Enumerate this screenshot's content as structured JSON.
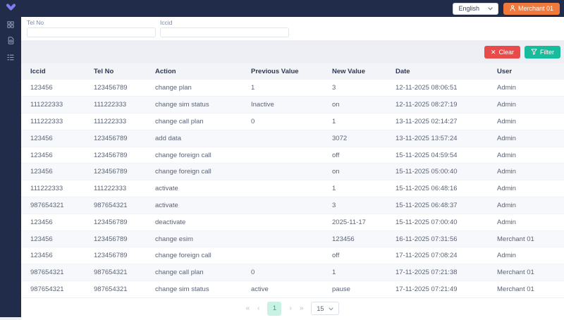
{
  "topbar": {
    "language": "English",
    "merchant_label": "Merchant 01"
  },
  "sidebar": {
    "logo_icon": "chevron-down-logo",
    "icons": [
      "dashboard-icon",
      "sim-card-icon",
      "list-icon"
    ]
  },
  "filters": {
    "tel_no_label": "Tel No",
    "tel_no_value": "",
    "iccid_label": "Iccid",
    "iccid_value": "",
    "clear_label": "Clear",
    "filter_label": "Filter"
  },
  "table": {
    "columns": [
      "Iccid",
      "Tel No",
      "Action",
      "Previous Value",
      "New Value",
      "Date",
      "User"
    ],
    "rows": [
      [
        "123456",
        "123456789",
        "change plan",
        "1",
        "3",
        "12-11-2025 08:06:51",
        "Admin"
      ],
      [
        "111222333",
        "111222333",
        "change sim status",
        "Inactive",
        "on",
        "12-11-2025 08:27:19",
        "Admin"
      ],
      [
        "111222333",
        "111222333",
        "change call plan",
        "0",
        "1",
        "13-11-2025 02:14:27",
        "Admin"
      ],
      [
        "123456",
        "123456789",
        "add data",
        "",
        "3072",
        "13-11-2025 13:57:24",
        "Admin"
      ],
      [
        "123456",
        "123456789",
        "change foreign call",
        "",
        "off",
        "15-11-2025 04:59:54",
        "Admin"
      ],
      [
        "123456",
        "123456789",
        "change foreign call",
        "",
        "on",
        "15-11-2025 05:00:40",
        "Admin"
      ],
      [
        "111222333",
        "111222333",
        "activate",
        "",
        "1",
        "15-11-2025 06:48:16",
        "Admin"
      ],
      [
        "987654321",
        "987654321",
        "activate",
        "",
        "3",
        "15-11-2025 06:48:37",
        "Admin"
      ],
      [
        "123456",
        "123456789",
        "deactivate",
        "",
        "2025-11-17",
        "15-11-2025 07:00:40",
        "Admin"
      ],
      [
        "123456",
        "123456789",
        "change esim",
        "",
        "123456",
        "16-11-2025 07:31:56",
        "Merchant 01"
      ],
      [
        "123456",
        "123456789",
        "change foreign call",
        "",
        "off",
        "17-11-2025 07:08:24",
        "Admin"
      ],
      [
        "987654321",
        "987654321",
        "change call plan",
        "0",
        "1",
        "17-11-2025 07:21:38",
        "Merchant 01"
      ],
      [
        "987654321",
        "987654321",
        "change sim status",
        "active",
        "pause",
        "17-11-2025 07:21:49",
        "Merchant 01"
      ]
    ]
  },
  "pagination": {
    "first_label": "«",
    "prev_label": "‹",
    "current_page": "1",
    "next_label": "›",
    "last_label": "»",
    "page_size": "15"
  },
  "colors": {
    "topbar_navy": "#202C4A",
    "logo_purple": "#7B7FF0",
    "merchant_orange": "#EF7A3C",
    "clear_red": "#E94B4B",
    "filter_teal": "#17BC9C",
    "active_page_bg": "#C9F2E5",
    "active_page_text": "#21A98C"
  }
}
